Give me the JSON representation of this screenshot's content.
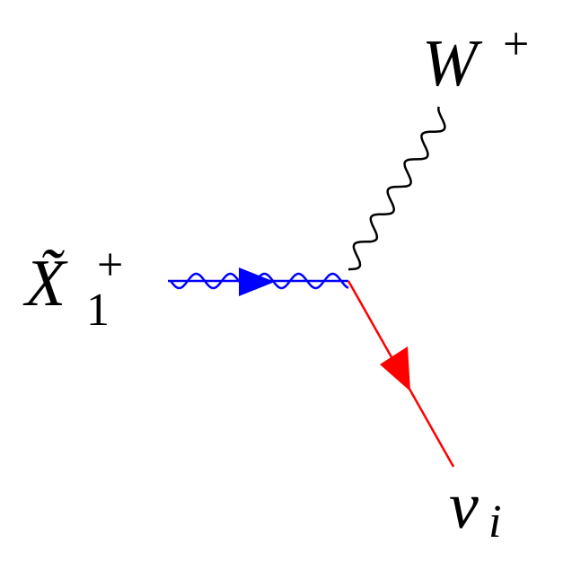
{
  "particles": {
    "incoming": {
      "symbol": "X̃",
      "subscript": "1",
      "superscript": "+"
    },
    "boson": {
      "symbol": "W",
      "superscript": "+"
    },
    "lepton": {
      "symbol": "ν",
      "subscript": "i"
    }
  }
}
